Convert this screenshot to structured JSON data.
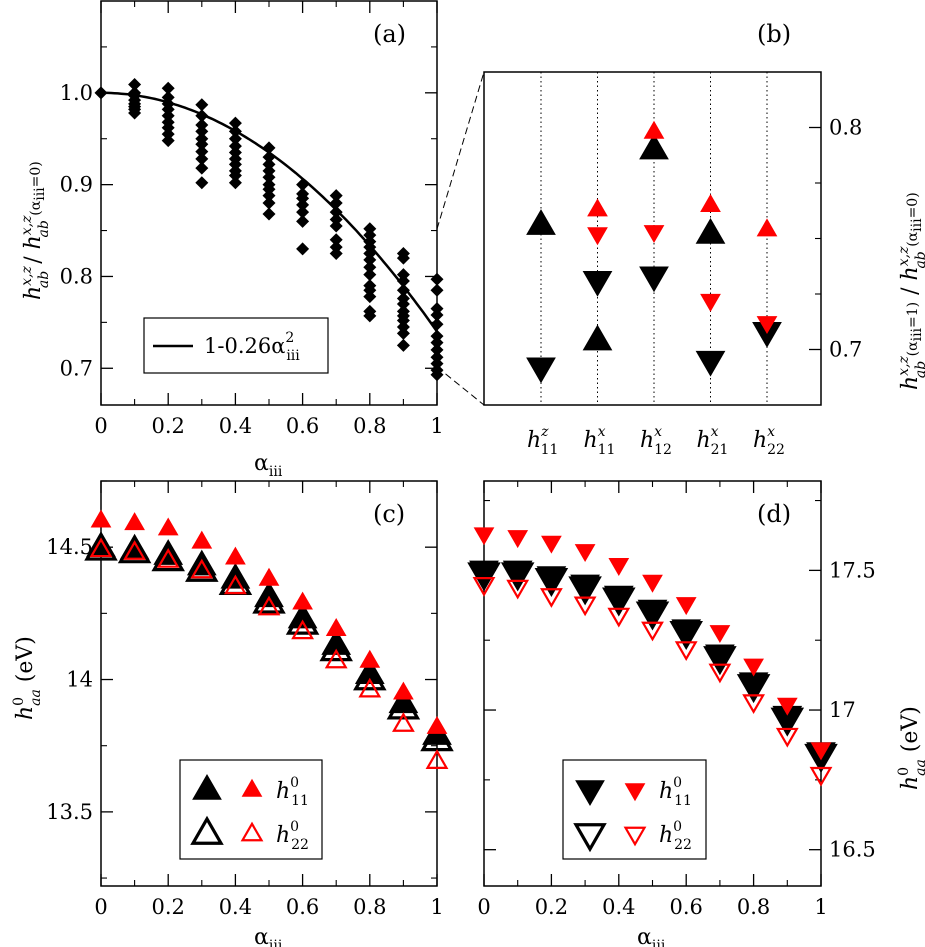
{
  "colors": {
    "black": "#000000",
    "red": "#ff0000"
  },
  "chart_data": [
    {
      "panel": "a",
      "type": "scatter",
      "label": "(a)",
      "xlim": [
        0,
        1
      ],
      "ylim": [
        0.66,
        1.1
      ],
      "xticks": [
        "0",
        "0.2",
        "0.4",
        "0.6",
        "0.8",
        "1"
      ],
      "yticks": [
        "0.7",
        "0.8",
        "0.9",
        "1.0"
      ],
      "xlabel": "α",
      "xlabel_sub": "iii",
      "ylabel": "h_ab^{x,z} / h_ab^{x,z}(α_iii=0)",
      "legend": {
        "line_label": "1-0.26α",
        "sup": "2",
        "sub": "iii"
      },
      "fit": {
        "a": 1.0,
        "b": -0.26
      },
      "scatter": [
        {
          "x": 0.0,
          "y": [
            1.0
          ]
        },
        {
          "x": 0.1,
          "y": [
            1.009,
            1.0,
            0.997,
            0.992,
            0.988,
            0.985,
            0.982,
            0.978
          ]
        },
        {
          "x": 0.2,
          "y": [
            1.005,
            0.995,
            0.988,
            0.982,
            0.975,
            0.968,
            0.962,
            0.955,
            0.948
          ]
        },
        {
          "x": 0.3,
          "y": [
            0.987,
            0.975,
            0.965,
            0.958,
            0.95,
            0.944,
            0.936,
            0.928,
            0.918,
            0.902
          ]
        },
        {
          "x": 0.4,
          "y": [
            0.967,
            0.958,
            0.95,
            0.942,
            0.935,
            0.928,
            0.922,
            0.915,
            0.91,
            0.902
          ]
        },
        {
          "x": 0.5,
          "y": [
            0.94,
            0.93,
            0.922,
            0.915,
            0.908,
            0.9,
            0.895,
            0.888,
            0.88,
            0.868
          ]
        },
        {
          "x": 0.6,
          "y": [
            0.9,
            0.89,
            0.885,
            0.878,
            0.87,
            0.86,
            0.83
          ]
        },
        {
          "x": 0.7,
          "y": [
            0.88,
            0.87,
            0.862,
            0.855,
            0.84,
            0.832,
            0.825,
            0.888
          ]
        },
        {
          "x": 0.8,
          "y": [
            0.852,
            0.845,
            0.838,
            0.832,
            0.825,
            0.818,
            0.81,
            0.802,
            0.79,
            0.785,
            0.778,
            0.762,
            0.757
          ]
        },
        {
          "x": 0.9,
          "y": [
            0.825,
            0.82,
            0.802,
            0.795,
            0.785,
            0.776,
            0.77,
            0.762,
            0.757,
            0.752,
            0.745,
            0.738,
            0.725
          ]
        },
        {
          "x": 1.0,
          "y": [
            0.797,
            0.785,
            0.765,
            0.758,
            0.748,
            0.735,
            0.728,
            0.72,
            0.712,
            0.705,
            0.698,
            0.693
          ]
        }
      ]
    },
    {
      "panel": "b",
      "type": "scatter",
      "label": "(b)",
      "ylim": [
        0.675,
        0.825
      ],
      "yticks": [
        "0.7",
        "0.8"
      ],
      "ylabel": "h_ab^{x,z}(α_iii=1) / h_ab^{x,z}(α_iii=0)",
      "categories": [
        {
          "main": "h",
          "sub": "11",
          "sup": "z"
        },
        {
          "main": "h",
          "sub": "11",
          "sup": "x"
        },
        {
          "main": "h",
          "sub": "12",
          "sup": "x"
        },
        {
          "main": "h",
          "sub": "21",
          "sup": "x"
        },
        {
          "main": "h",
          "sub": "22",
          "sup": "x"
        }
      ],
      "series": [
        {
          "name": "black up",
          "color": "black",
          "marker": "up",
          "size": "large",
          "values": [
            0.756,
            0.704,
            0.79,
            0.752,
            null
          ]
        },
        {
          "name": "black down",
          "color": "black",
          "marker": "down",
          "size": "large",
          "values": [
            0.692,
            0.731,
            0.733,
            0.695,
            0.708
          ]
        },
        {
          "name": "red up",
          "color": "red",
          "marker": "up",
          "size": "small",
          "values": [
            null,
            0.763,
            0.798,
            0.765,
            0.754
          ]
        },
        {
          "name": "red down",
          "color": "red",
          "marker": "down",
          "size": "small",
          "values": [
            null,
            0.752,
            0.753,
            0.722,
            0.712
          ]
        }
      ]
    },
    {
      "panel": "c",
      "type": "scatter",
      "label": "(c)",
      "xlim": [
        0,
        1
      ],
      "ylim": [
        13.22,
        14.75
      ],
      "xticks": [
        "0",
        "0.2",
        "0.4",
        "0.6",
        "0.8",
        "1"
      ],
      "yticks": [
        "13.5",
        "14",
        "14.5"
      ],
      "xlabel": "α",
      "xlabel_sub": "iii",
      "ylabel": "h_aa^0 (eV)",
      "legend": [
        {
          "label": "h",
          "sub": "11",
          "sup": "0"
        },
        {
          "label": "h",
          "sub": "22",
          "sup": "0"
        }
      ],
      "x": [
        0,
        0.1,
        0.2,
        0.3,
        0.4,
        0.5,
        0.6,
        0.7,
        0.8,
        0.9,
        1.0
      ],
      "series": [
        {
          "name": "h11 black",
          "color": "black",
          "marker": "up",
          "filled": true,
          "size": "large",
          "values": [
            14.5,
            14.49,
            14.47,
            14.43,
            14.38,
            14.31,
            14.23,
            14.13,
            14.02,
            13.91,
            13.79
          ]
        },
        {
          "name": "h22 black",
          "color": "black",
          "marker": "up",
          "filled": false,
          "size": "large",
          "values": [
            14.49,
            14.48,
            14.45,
            14.41,
            14.36,
            14.29,
            14.21,
            14.11,
            14.0,
            13.89,
            13.77
          ]
        },
        {
          "name": "h11 red",
          "color": "red",
          "marker": "up",
          "filled": true,
          "size": "small",
          "values": [
            14.6,
            14.59,
            14.57,
            14.52,
            14.46,
            14.38,
            14.29,
            14.19,
            14.07,
            13.95,
            13.82
          ]
        },
        {
          "name": "h22 red",
          "color": "red",
          "marker": "up",
          "filled": false,
          "size": "small",
          "values": [
            14.49,
            14.48,
            14.45,
            14.41,
            14.35,
            14.27,
            14.18,
            14.07,
            13.96,
            13.83,
            13.69
          ]
        }
      ]
    },
    {
      "panel": "d",
      "type": "scatter",
      "label": "(d)",
      "xlim": [
        0,
        1
      ],
      "ylim": [
        16.37,
        17.82
      ],
      "xticks": [
        "0",
        "0.2",
        "0.4",
        "0.6",
        "0.8",
        "1"
      ],
      "yticks": [
        "16.5",
        "17",
        "17.5"
      ],
      "xlabel": "α",
      "xlabel_sub": "iii",
      "ylabel": "h_aa^0 (eV)",
      "legend": [
        {
          "label": "h",
          "sub": "11",
          "sup": "0"
        },
        {
          "label": "h",
          "sub": "22",
          "sup": "0"
        }
      ],
      "x": [
        0,
        0.1,
        0.2,
        0.3,
        0.4,
        0.5,
        0.6,
        0.7,
        0.8,
        0.9,
        1.0
      ],
      "series": [
        {
          "name": "h11 black",
          "color": "black",
          "marker": "down",
          "filled": true,
          "size": "large",
          "values": [
            17.5,
            17.5,
            17.48,
            17.45,
            17.41,
            17.36,
            17.29,
            17.2,
            17.1,
            16.98,
            16.85
          ]
        },
        {
          "name": "h22 black",
          "color": "black",
          "marker": "down",
          "filled": false,
          "size": "large",
          "values": [
            17.49,
            17.49,
            17.47,
            17.44,
            17.4,
            17.35,
            17.28,
            17.19,
            17.09,
            16.97,
            16.84
          ]
        },
        {
          "name": "h11 red",
          "color": "red",
          "marker": "down",
          "filled": true,
          "size": "small",
          "values": [
            17.63,
            17.62,
            17.6,
            17.57,
            17.52,
            17.46,
            17.38,
            17.28,
            17.16,
            17.02,
            16.86
          ]
        },
        {
          "name": "h22 red",
          "color": "red",
          "marker": "down",
          "filled": false,
          "size": "small",
          "values": [
            17.45,
            17.44,
            17.41,
            17.38,
            17.34,
            17.29,
            17.22,
            17.14,
            17.03,
            16.91,
            16.77
          ]
        }
      ]
    }
  ]
}
